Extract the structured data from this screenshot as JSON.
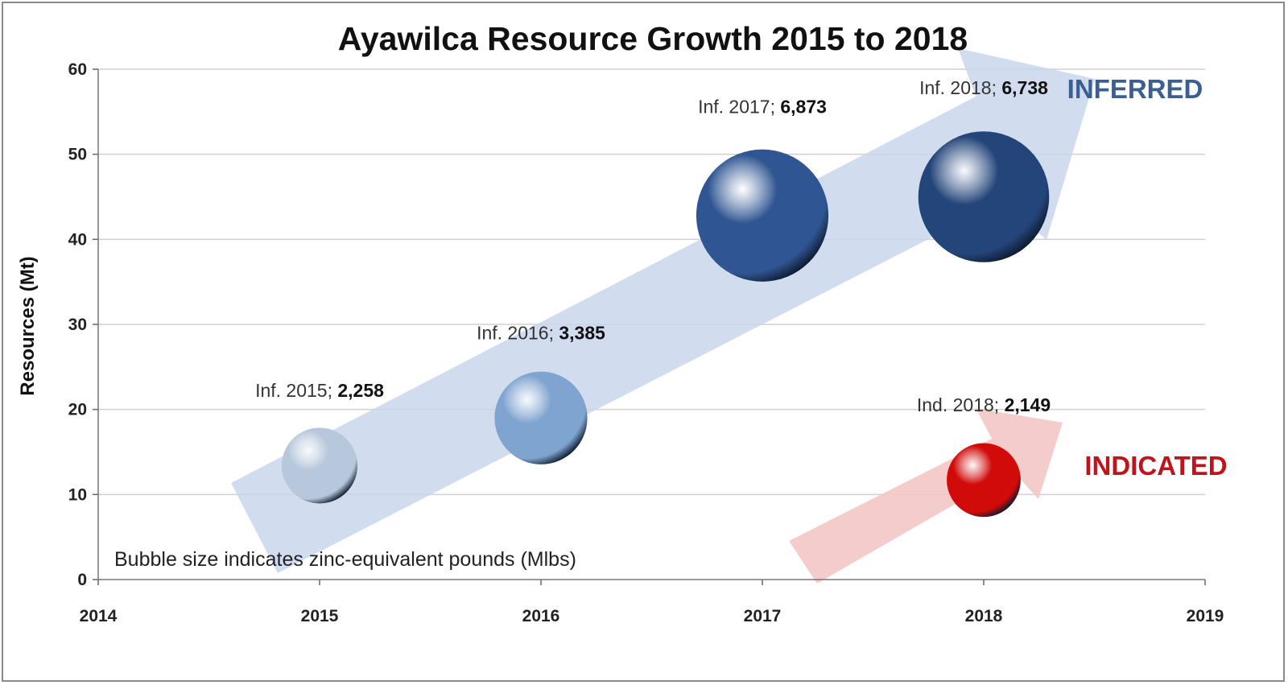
{
  "chart_data": {
    "type": "scatter",
    "subtype": "bubble",
    "title": "Ayawilca Resource Growth 2015 to 2018",
    "xlabel": "",
    "ylabel": "Resources (Mt)",
    "xlim": [
      2014,
      2019
    ],
    "ylim": [
      0,
      60
    ],
    "xticks": [
      "2014",
      "2015",
      "2016",
      "2017",
      "2018",
      "2019"
    ],
    "yticks": [
      "0",
      "10",
      "20",
      "30",
      "40",
      "50",
      "60"
    ],
    "grid": true,
    "note": "Bubble size indicates zinc-equivalent pounds (Mlbs)",
    "series": [
      {
        "name": "INFERRED",
        "color": "#3a5f93",
        "points": [
          {
            "x": 2015,
            "y": 13.4,
            "size": 2258,
            "label_prefix": "Inf. 2015;",
            "label_value": "2,258",
            "color": "#b8c8dc"
          },
          {
            "x": 2016,
            "y": 19.0,
            "size": 3385,
            "label_prefix": "Inf. 2016;",
            "label_value": "3,385",
            "color": "#7fa4cf"
          },
          {
            "x": 2017,
            "y": 42.8,
            "size": 6873,
            "label_prefix": "Inf. 2017;",
            "label_value": "6,873",
            "color": "#2f5592"
          },
          {
            "x": 2018,
            "y": 45.0,
            "size": 6738,
            "label_prefix": "Inf. 2018;",
            "label_value": "6,738",
            "color": "#24457a"
          }
        ]
      },
      {
        "name": "INDICATED",
        "color": "#c0141c",
        "points": [
          {
            "x": 2018,
            "y": 11.7,
            "size": 2149,
            "label_prefix": "Ind. 2018;",
            "label_value": "2,149",
            "color": "#d10a0a"
          }
        ]
      }
    ]
  }
}
